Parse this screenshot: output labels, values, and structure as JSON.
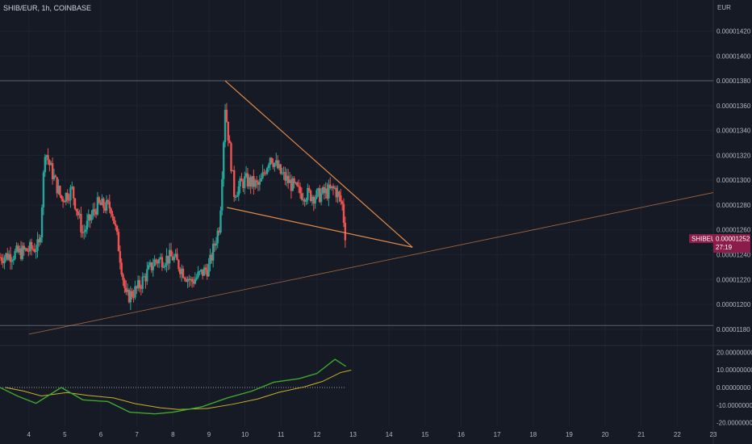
{
  "header": {
    "title": "SHIB/EUR, 1h, COINBASE",
    "currency": "EUR"
  },
  "colors": {
    "background": "#161a25",
    "grid": "#1f2330",
    "up": "#26a69a",
    "down": "#ef5350",
    "trendline": "#e08a4a",
    "rsi_line": "#3fa82e",
    "rsi_signal": "#c7b22a",
    "price_tag": "#8c1d4a",
    "level_line": "#5d606b"
  },
  "price_axis": {
    "labels": [
      "0.00001420",
      "0.00001400",
      "0.00001380",
      "0.00001360",
      "0.00001340",
      "0.00001320",
      "0.00001300",
      "0.00001280",
      "0.00001260",
      "0.00001240",
      "0.00001220",
      "0.00001200",
      "0.00001180"
    ],
    "current_symbol": "SHIBEUR",
    "current_price": "0.00001252",
    "countdown": "27:19"
  },
  "oscillator_axis": {
    "labels": [
      "20.00000000",
      "10.00000000",
      "0.00000000",
      "-10.00000000",
      "-20.00000000"
    ]
  },
  "time_axis": {
    "labels": [
      "4",
      "5",
      "6",
      "7",
      "8",
      "9",
      "10",
      "11",
      "12",
      "13",
      "14",
      "15",
      "16",
      "17",
      "18",
      "19",
      "20",
      "21",
      "22",
      "23"
    ]
  },
  "chart_data": {
    "type": "candlestick",
    "symbol": "SHIB/EUR",
    "interval": "1h",
    "exchange": "COINBASE",
    "ylim": [
      1.176e-05,
      1.432e-05
    ],
    "xlim": [
      3.2,
      23.0
    ],
    "oscillator_ylim": [
      -22,
      22
    ],
    "key_points": [
      {
        "day": 3.2,
        "price": 1.238e-05
      },
      {
        "day": 3.8,
        "price": 1.242e-05
      },
      {
        "day": 4.3,
        "price": 1.247e-05
      },
      {
        "day": 4.45,
        "price": 1.325e-05
      },
      {
        "day": 4.6,
        "price": 1.31e-05
      },
      {
        "day": 4.9,
        "price": 1.285e-05
      },
      {
        "day": 5.2,
        "price": 1.292e-05
      },
      {
        "day": 5.5,
        "price": 1.257e-05
      },
      {
        "day": 5.9,
        "price": 1.28e-05
      },
      {
        "day": 6.3,
        "price": 1.278e-05
      },
      {
        "day": 6.5,
        "price": 1.245e-05
      },
      {
        "day": 6.7,
        "price": 1.205e-05
      },
      {
        "day": 7.0,
        "price": 1.212e-05
      },
      {
        "day": 7.5,
        "price": 1.235e-05
      },
      {
        "day": 8.0,
        "price": 1.238e-05
      },
      {
        "day": 8.5,
        "price": 1.218e-05
      },
      {
        "day": 9.0,
        "price": 1.23e-05
      },
      {
        "day": 9.3,
        "price": 1.265e-05
      },
      {
        "day": 9.45,
        "price": 1.36e-05
      },
      {
        "day": 9.7,
        "price": 1.29e-05
      },
      {
        "day": 10.0,
        "price": 1.3e-05
      },
      {
        "day": 10.4,
        "price": 1.295e-05
      },
      {
        "day": 10.7,
        "price": 1.32e-05
      },
      {
        "day": 11.0,
        "price": 1.305e-05
      },
      {
        "day": 11.5,
        "price": 1.29e-05
      },
      {
        "day": 12.0,
        "price": 1.287e-05
      },
      {
        "day": 12.5,
        "price": 1.293e-05
      },
      {
        "day": 12.7,
        "price": 1.28e-05
      },
      {
        "day": 12.8,
        "price": 1.252e-05
      }
    ],
    "key_levels": [
      1.38e-05,
      1.183e-05
    ],
    "trendlines": [
      {
        "from": {
          "day": 9.45,
          "price": 1.38e-05
        },
        "to": {
          "day": 14.65,
          "price": 1.246e-05
        }
      },
      {
        "from": {
          "day": 9.5,
          "price": 1.278e-05
        },
        "to": {
          "day": 14.65,
          "price": 1.246e-05
        }
      },
      {
        "from": {
          "day": 4.0,
          "price": 1.176e-05
        },
        "to": {
          "day": 23.0,
          "price": 1.29e-05
        }
      }
    ],
    "oscillator": {
      "zero_level": 0,
      "key_points": [
        {
          "day": 3.2,
          "value": 0
        },
        {
          "day": 3.7,
          "value": -5
        },
        {
          "day": 4.2,
          "value": -9
        },
        {
          "day": 4.9,
          "value": 0
        },
        {
          "day": 5.5,
          "value": -7
        },
        {
          "day": 6.2,
          "value": -8
        },
        {
          "day": 6.8,
          "value": -14
        },
        {
          "day": 7.5,
          "value": -15
        },
        {
          "day": 8.0,
          "value": -14
        },
        {
          "day": 8.8,
          "value": -11
        },
        {
          "day": 9.5,
          "value": -6
        },
        {
          "day": 10.2,
          "value": -2
        },
        {
          "day": 10.8,
          "value": 3
        },
        {
          "day": 11.5,
          "value": 5
        },
        {
          "day": 12.0,
          "value": 8
        },
        {
          "day": 12.5,
          "value": 16
        },
        {
          "day": 12.8,
          "value": 12
        }
      ]
    }
  }
}
